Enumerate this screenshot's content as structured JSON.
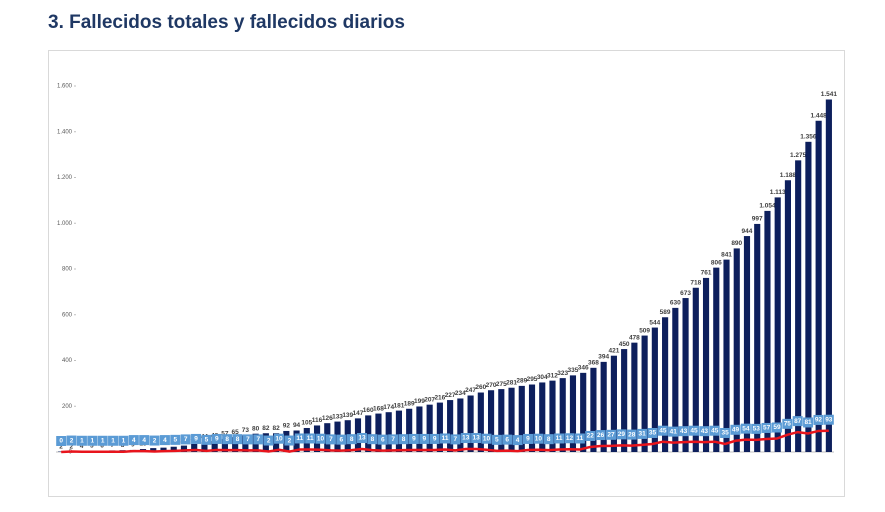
{
  "title": "3.  Fallecidos totales y fallecidos diarios",
  "chart_data": {
    "type": "bar",
    "ylim": [
      0,
      1600
    ],
    "yticks": [
      0,
      200,
      400,
      600,
      800,
      {
        "value": 1000,
        "label": "1.000"
      },
      {
        "value": 1200,
        "label": "1.200"
      },
      {
        "value": 1400,
        "label": "1.400"
      },
      {
        "value": 1600,
        "label": "1.600"
      }
    ],
    "grid": false,
    "series": [
      {
        "color": "#0d1f5c",
        "values": [
          2,
          2,
          4,
          5,
          6,
          7,
          8,
          9,
          13,
          17,
          19,
          23,
          28,
          35,
          44,
          48,
          57,
          65,
          73,
          80,
          82,
          82,
          92,
          94,
          105,
          116,
          126,
          133,
          139,
          147,
          160,
          168,
          174,
          181,
          189,
          199,
          207,
          216,
          227,
          234,
          247,
          260,
          270,
          275,
          281,
          289,
          295,
          304,
          312,
          323,
          335,
          346,
          368,
          394,
          421,
          450,
          478,
          509,
          544,
          589,
          630,
          673,
          718,
          761,
          806,
          841,
          890,
          944,
          997,
          1054,
          1113,
          1188,
          1275,
          1356,
          1448,
          1541
        ],
        "value_labels": [
          "2",
          "2",
          "4",
          "5",
          "6",
          "7",
          "8",
          "9",
          "13",
          "17",
          "19",
          "23",
          "28",
          "35",
          "44",
          "48",
          "57",
          "65",
          "73",
          "80",
          "82",
          "82",
          "92",
          "94",
          "105",
          "116",
          "126",
          "133",
          "139",
          "147",
          "160",
          "168",
          "174",
          "181",
          "189",
          "199",
          "207",
          "216",
          "227",
          "234",
          "247",
          "260",
          "270",
          "275",
          "281",
          "289",
          "295",
          "304",
          "312",
          "323",
          "335",
          "346",
          "368",
          "394",
          "421",
          "450",
          "478",
          "509",
          "544",
          "589",
          "630",
          "673",
          "718",
          "761",
          "806",
          "841",
          "890",
          "944",
          "997",
          "1.054",
          "1.113",
          "1.188",
          "1.275",
          "1.356",
          "1.448",
          "1.541"
        ]
      },
      {
        "color": "#e8141c",
        "type": "line",
        "values": [
          0,
          2,
          1,
          1,
          1,
          1,
          1,
          4,
          4,
          2,
          4,
          5,
          7,
          9,
          5,
          9,
          8,
          8,
          7,
          7,
          2,
          10,
          2,
          11,
          11,
          10,
          7,
          6,
          8,
          13,
          8,
          6,
          7,
          8,
          9,
          9,
          9,
          11,
          7,
          13,
          13,
          10,
          5,
          6,
          4,
          9,
          10,
          8,
          11,
          12,
          11,
          22,
          26,
          27,
          29,
          28,
          31,
          35,
          45,
          41,
          43,
          45,
          43,
          45,
          35,
          49,
          54,
          53,
          57,
          59,
          75,
          87,
          81,
          92,
          93
        ]
      }
    ]
  }
}
